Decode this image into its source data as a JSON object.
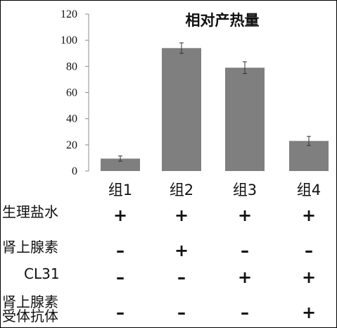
{
  "chart_data": {
    "type": "bar",
    "title": "相对产热量",
    "categories": [
      "组1",
      "组2",
      "组3",
      "组4"
    ],
    "values": [
      9.5,
      94,
      79,
      23
    ],
    "errors": [
      2,
      4,
      4.5,
      3.5
    ],
    "ylim": [
      0,
      120
    ],
    "yticks": [
      0,
      20,
      40,
      60,
      80,
      100,
      120
    ],
    "bar_color": "#7f7f7f",
    "grid": false
  },
  "conditions": [
    {
      "label": "生理盐水",
      "signs": [
        "+",
        "+",
        "+",
        "+"
      ]
    },
    {
      "label": "肾上腺素",
      "signs": [
        "–",
        "+",
        "–",
        "–"
      ]
    },
    {
      "label": "CL31",
      "signs": [
        "–",
        "–",
        "+",
        "+"
      ]
    },
    {
      "label_lines": [
        "肾上腺素",
        "受体抗体"
      ],
      "signs": [
        "–",
        "–",
        "–",
        "+"
      ]
    }
  ]
}
